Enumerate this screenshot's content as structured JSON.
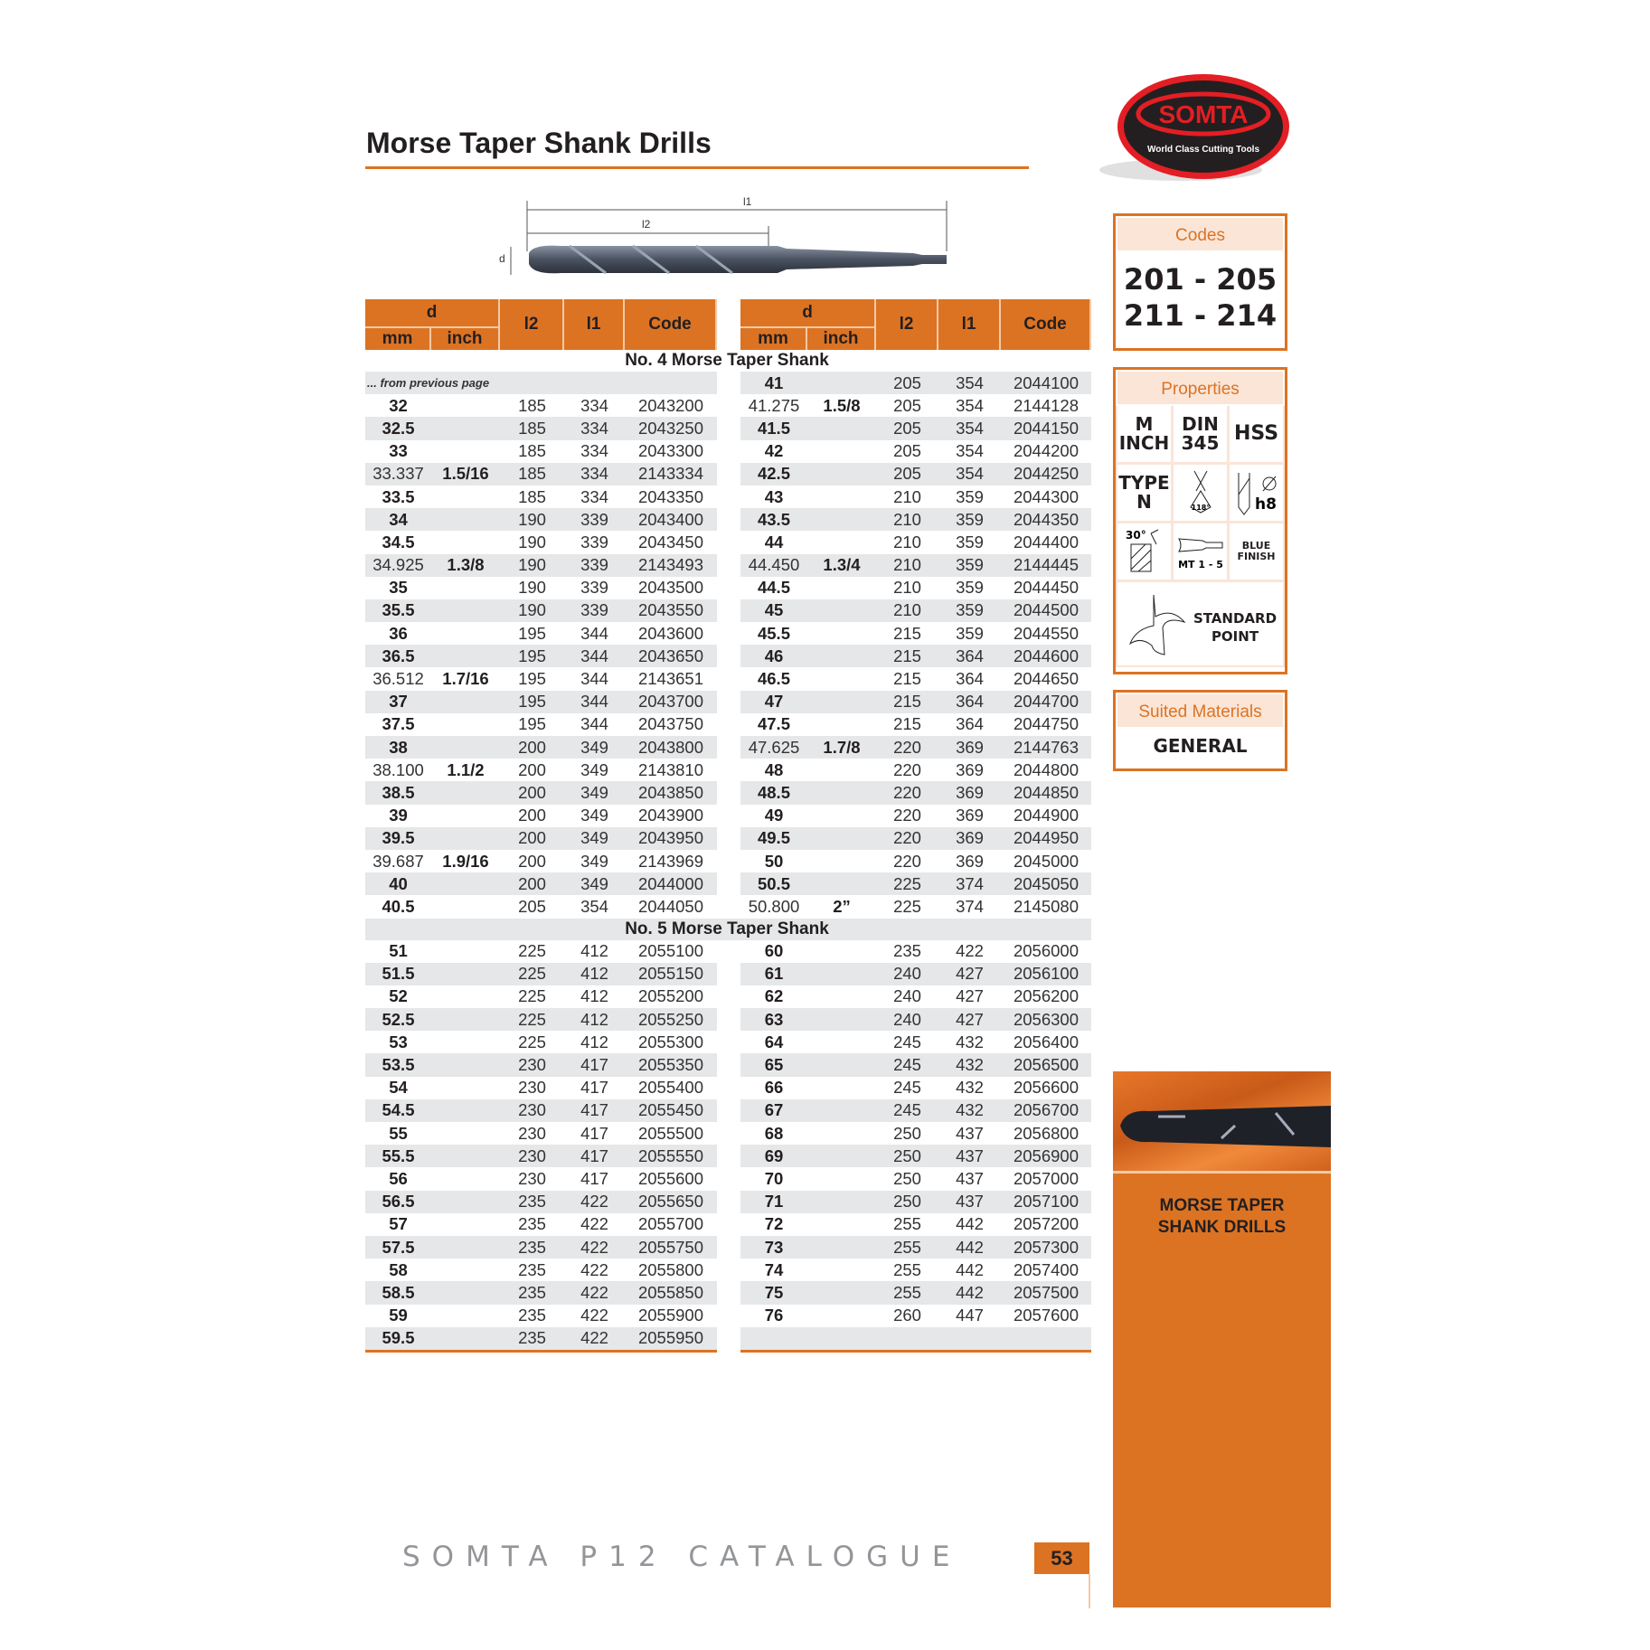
{
  "page_title": "Morse Taper Shank Drills",
  "diagram": {
    "l1": "l1",
    "l2": "l2",
    "d": "d"
  },
  "table_headers": {
    "d": "d",
    "mm": "mm",
    "inch": "inch",
    "l2": "l2",
    "l1": "l1",
    "code": "Code"
  },
  "sections": [
    {
      "title": "No. 4 Morse Taper Shank",
      "left": [
        {
          "note": "... from previous page"
        },
        [
          "32",
          "",
          "185",
          "334",
          "2043200"
        ],
        [
          "32.5",
          "",
          "185",
          "334",
          "2043250"
        ],
        [
          "33",
          "",
          "185",
          "334",
          "2043300"
        ],
        [
          "33.337",
          "1.5/16",
          "185",
          "334",
          "2143334"
        ],
        [
          "33.5",
          "",
          "185",
          "334",
          "2043350"
        ],
        [
          "34",
          "",
          "190",
          "339",
          "2043400"
        ],
        [
          "34.5",
          "",
          "190",
          "339",
          "2043450"
        ],
        [
          "34.925",
          "1.3/8",
          "190",
          "339",
          "2143493"
        ],
        [
          "35",
          "",
          "190",
          "339",
          "2043500"
        ],
        [
          "35.5",
          "",
          "190",
          "339",
          "2043550"
        ],
        [
          "36",
          "",
          "195",
          "344",
          "2043600"
        ],
        [
          "36.5",
          "",
          "195",
          "344",
          "2043650"
        ],
        [
          "36.512",
          "1.7/16",
          "195",
          "344",
          "2143651"
        ],
        [
          "37",
          "",
          "195",
          "344",
          "2043700"
        ],
        [
          "37.5",
          "",
          "195",
          "344",
          "2043750"
        ],
        [
          "38",
          "",
          "200",
          "349",
          "2043800"
        ],
        [
          "38.100",
          "1.1/2",
          "200",
          "349",
          "2143810"
        ],
        [
          "38.5",
          "",
          "200",
          "349",
          "2043850"
        ],
        [
          "39",
          "",
          "200",
          "349",
          "2043900"
        ],
        [
          "39.5",
          "",
          "200",
          "349",
          "2043950"
        ],
        [
          "39.687",
          "1.9/16",
          "200",
          "349",
          "2143969"
        ],
        [
          "40",
          "",
          "200",
          "349",
          "2044000"
        ],
        [
          "40.5",
          "",
          "205",
          "354",
          "2044050"
        ]
      ],
      "right": [
        [
          "41",
          "",
          "205",
          "354",
          "2044100"
        ],
        [
          "41.275",
          "1.5/8",
          "205",
          "354",
          "2144128"
        ],
        [
          "41.5",
          "",
          "205",
          "354",
          "2044150"
        ],
        [
          "42",
          "",
          "205",
          "354",
          "2044200"
        ],
        [
          "42.5",
          "",
          "205",
          "354",
          "2044250"
        ],
        [
          "43",
          "",
          "210",
          "359",
          "2044300"
        ],
        [
          "43.5",
          "",
          "210",
          "359",
          "2044350"
        ],
        [
          "44",
          "",
          "210",
          "359",
          "2044400"
        ],
        [
          "44.450",
          "1.3/4",
          "210",
          "359",
          "2144445"
        ],
        [
          "44.5",
          "",
          "210",
          "359",
          "2044450"
        ],
        [
          "45",
          "",
          "210",
          "359",
          "2044500"
        ],
        [
          "45.5",
          "",
          "215",
          "359",
          "2044550"
        ],
        [
          "46",
          "",
          "215",
          "364",
          "2044600"
        ],
        [
          "46.5",
          "",
          "215",
          "364",
          "2044650"
        ],
        [
          "47",
          "",
          "215",
          "364",
          "2044700"
        ],
        [
          "47.5",
          "",
          "215",
          "364",
          "2044750"
        ],
        [
          "47.625",
          "1.7/8",
          "220",
          "369",
          "2144763"
        ],
        [
          "48",
          "",
          "220",
          "369",
          "2044800"
        ],
        [
          "48.5",
          "",
          "220",
          "369",
          "2044850"
        ],
        [
          "49",
          "",
          "220",
          "369",
          "2044900"
        ],
        [
          "49.5",
          "",
          "220",
          "369",
          "2044950"
        ],
        [
          "50",
          "",
          "220",
          "369",
          "2045000"
        ],
        [
          "50.5",
          "",
          "225",
          "374",
          "2045050"
        ],
        [
          "50.800",
          "2”",
          "225",
          "374",
          "2145080"
        ]
      ]
    },
    {
      "title": "No. 5 Morse Taper Shank",
      "left": [
        [
          "51",
          "",
          "225",
          "412",
          "2055100"
        ],
        [
          "51.5",
          "",
          "225",
          "412",
          "2055150"
        ],
        [
          "52",
          "",
          "225",
          "412",
          "2055200"
        ],
        [
          "52.5",
          "",
          "225",
          "412",
          "2055250"
        ],
        [
          "53",
          "",
          "225",
          "412",
          "2055300"
        ],
        [
          "53.5",
          "",
          "230",
          "417",
          "2055350"
        ],
        [
          "54",
          "",
          "230",
          "417",
          "2055400"
        ],
        [
          "54.5",
          "",
          "230",
          "417",
          "2055450"
        ],
        [
          "55",
          "",
          "230",
          "417",
          "2055500"
        ],
        [
          "55.5",
          "",
          "230",
          "417",
          "2055550"
        ],
        [
          "56",
          "",
          "230",
          "417",
          "2055600"
        ],
        [
          "56.5",
          "",
          "235",
          "422",
          "2055650"
        ],
        [
          "57",
          "",
          "235",
          "422",
          "2055700"
        ],
        [
          "57.5",
          "",
          "235",
          "422",
          "2055750"
        ],
        [
          "58",
          "",
          "235",
          "422",
          "2055800"
        ],
        [
          "58.5",
          "",
          "235",
          "422",
          "2055850"
        ],
        [
          "59",
          "",
          "235",
          "422",
          "2055900"
        ],
        [
          "59.5",
          "",
          "235",
          "422",
          "2055950"
        ]
      ],
      "right": [
        [
          "60",
          "",
          "235",
          "422",
          "2056000"
        ],
        [
          "61",
          "",
          "240",
          "427",
          "2056100"
        ],
        [
          "62",
          "",
          "240",
          "427",
          "2056200"
        ],
        [
          "63",
          "",
          "240",
          "427",
          "2056300"
        ],
        [
          "64",
          "",
          "245",
          "432",
          "2056400"
        ],
        [
          "65",
          "",
          "245",
          "432",
          "2056500"
        ],
        [
          "66",
          "",
          "245",
          "432",
          "2056600"
        ],
        [
          "67",
          "",
          "245",
          "432",
          "2056700"
        ],
        [
          "68",
          "",
          "250",
          "437",
          "2056800"
        ],
        [
          "69",
          "",
          "250",
          "437",
          "2056900"
        ],
        [
          "70",
          "",
          "250",
          "437",
          "2057000"
        ],
        [
          "71",
          "",
          "250",
          "437",
          "2057100"
        ],
        [
          "72",
          "",
          "255",
          "442",
          "2057200"
        ],
        [
          "73",
          "",
          "255",
          "442",
          "2057300"
        ],
        [
          "74",
          "",
          "255",
          "442",
          "2057400"
        ],
        [
          "75",
          "",
          "255",
          "442",
          "2057500"
        ],
        [
          "76",
          "",
          "260",
          "447",
          "2057600"
        ],
        [
          "",
          "",
          "",
          "",
          ""
        ]
      ]
    }
  ],
  "logo": {
    "brand": "SOMTA",
    "tagline": "World Class Cutting Tools",
    "colors": {
      "ring": "#e31e24",
      "fill": "#231f20"
    }
  },
  "codes_box": {
    "title": "Codes",
    "line1": "201 - 205",
    "line2": "211 - 214"
  },
  "properties_box": {
    "title": "Properties",
    "cells": [
      "M",
      "INCH",
      "DIN",
      "345",
      "HSS",
      "TYPE",
      "N",
      "118°",
      "h8",
      "30°",
      "MT 1 - 5",
      "BLUE",
      "FINISH",
      "STANDARD",
      "POINT"
    ]
  },
  "materials_box": {
    "title": "Suited Materials",
    "value": "GENERAL"
  },
  "sidebar": {
    "line1": "MORSE TAPER",
    "line2": "SHANK DRILLS"
  },
  "footer": {
    "text": "SOMTA P12 CATALOGUE",
    "page": "53"
  },
  "colors": {
    "accent": "#dc7323",
    "stripe": "#e6e7e9",
    "accent_light": "#fae5d7"
  }
}
